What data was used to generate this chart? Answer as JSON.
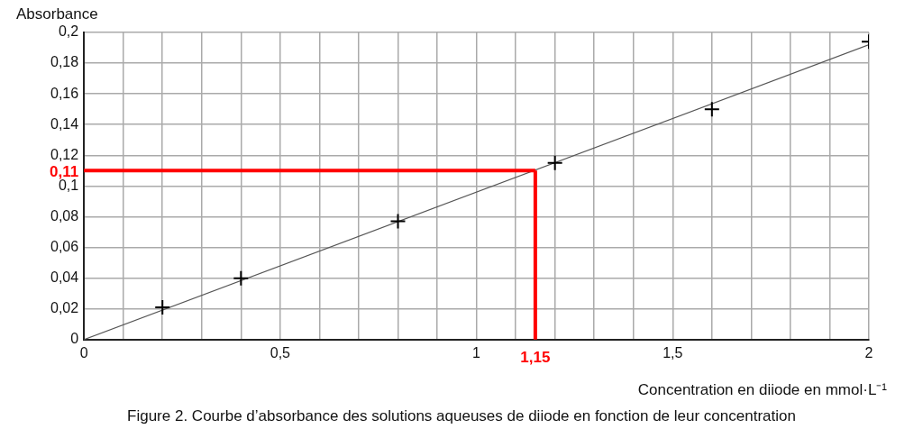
{
  "chart_data": {
    "type": "scatter",
    "xlabel": "Concentration en diiode en mmol·L⁻¹",
    "ylabel": "Absorbance",
    "annotations": [
      "Figure 2. Courbe d’absorbance des solutions aqueuses de diiode en fonction de leur concentration"
    ],
    "series": [
      {
        "color": "#000000",
        "marker": "cross",
        "x": [
          0.2,
          0.4,
          0.8,
          1.2,
          1.6,
          2.0
        ],
        "values": [
          0.021,
          0.04,
          0.077,
          0.115,
          0.15,
          0.194
        ]
      },
      {
        "type": "line",
        "color": "#555555",
        "marker": "none",
        "x": [
          0,
          2
        ],
        "values": [
          0,
          0.192
        ]
      }
    ],
    "xlim": [
      0,
      2
    ],
    "ylim": [
      0,
      0.2
    ],
    "xticks": [
      0,
      {
        "value": 0.1,
        "label": null
      },
      {
        "value": 0.2,
        "label": null
      },
      {
        "value": 0.3,
        "label": null
      },
      {
        "value": 0.4,
        "label": null
      },
      {
        "value": 0.5,
        "label": "0,5"
      },
      {
        "value": 0.6,
        "label": null
      },
      {
        "value": 0.7,
        "label": null
      },
      {
        "value": 0.8,
        "label": null
      },
      {
        "value": 0.9,
        "label": null
      },
      1,
      {
        "value": 1.1,
        "label": null
      },
      {
        "value": 1.2,
        "label": null
      },
      {
        "value": 1.3,
        "label": null
      },
      {
        "value": 1.4,
        "label": null
      },
      {
        "value": 1.5,
        "label": "1,5"
      },
      {
        "value": 1.6,
        "label": null
      },
      {
        "value": 1.7,
        "label": null
      },
      {
        "value": 1.8,
        "label": null
      },
      {
        "value": 1.9,
        "label": null
      },
      2
    ],
    "yticks": [
      0,
      {
        "value": 0.02,
        "label": "0,02"
      },
      {
        "value": 0.04,
        "label": "0,04"
      },
      {
        "value": 0.06,
        "label": "0,06"
      },
      {
        "value": 0.08,
        "label": "0,08"
      },
      {
        "value": 0.1,
        "label": "0,1"
      },
      {
        "value": 0.12,
        "label": "0,12"
      },
      {
        "value": 0.14,
        "label": "0,14"
      },
      {
        "value": 0.16,
        "label": "0,16"
      },
      {
        "value": 0.18,
        "label": "0,18"
      },
      {
        "value": 0.2,
        "label": "0,2"
      }
    ],
    "grid": true,
    "legend": false,
    "ref_lines": [
      {
        "axis": "y",
        "value": 0.11,
        "label": "0,11",
        "color": "#ff0000"
      },
      {
        "axis": "x",
        "value": 1.15,
        "label": "1,15",
        "color": "#ff0000"
      }
    ]
  }
}
